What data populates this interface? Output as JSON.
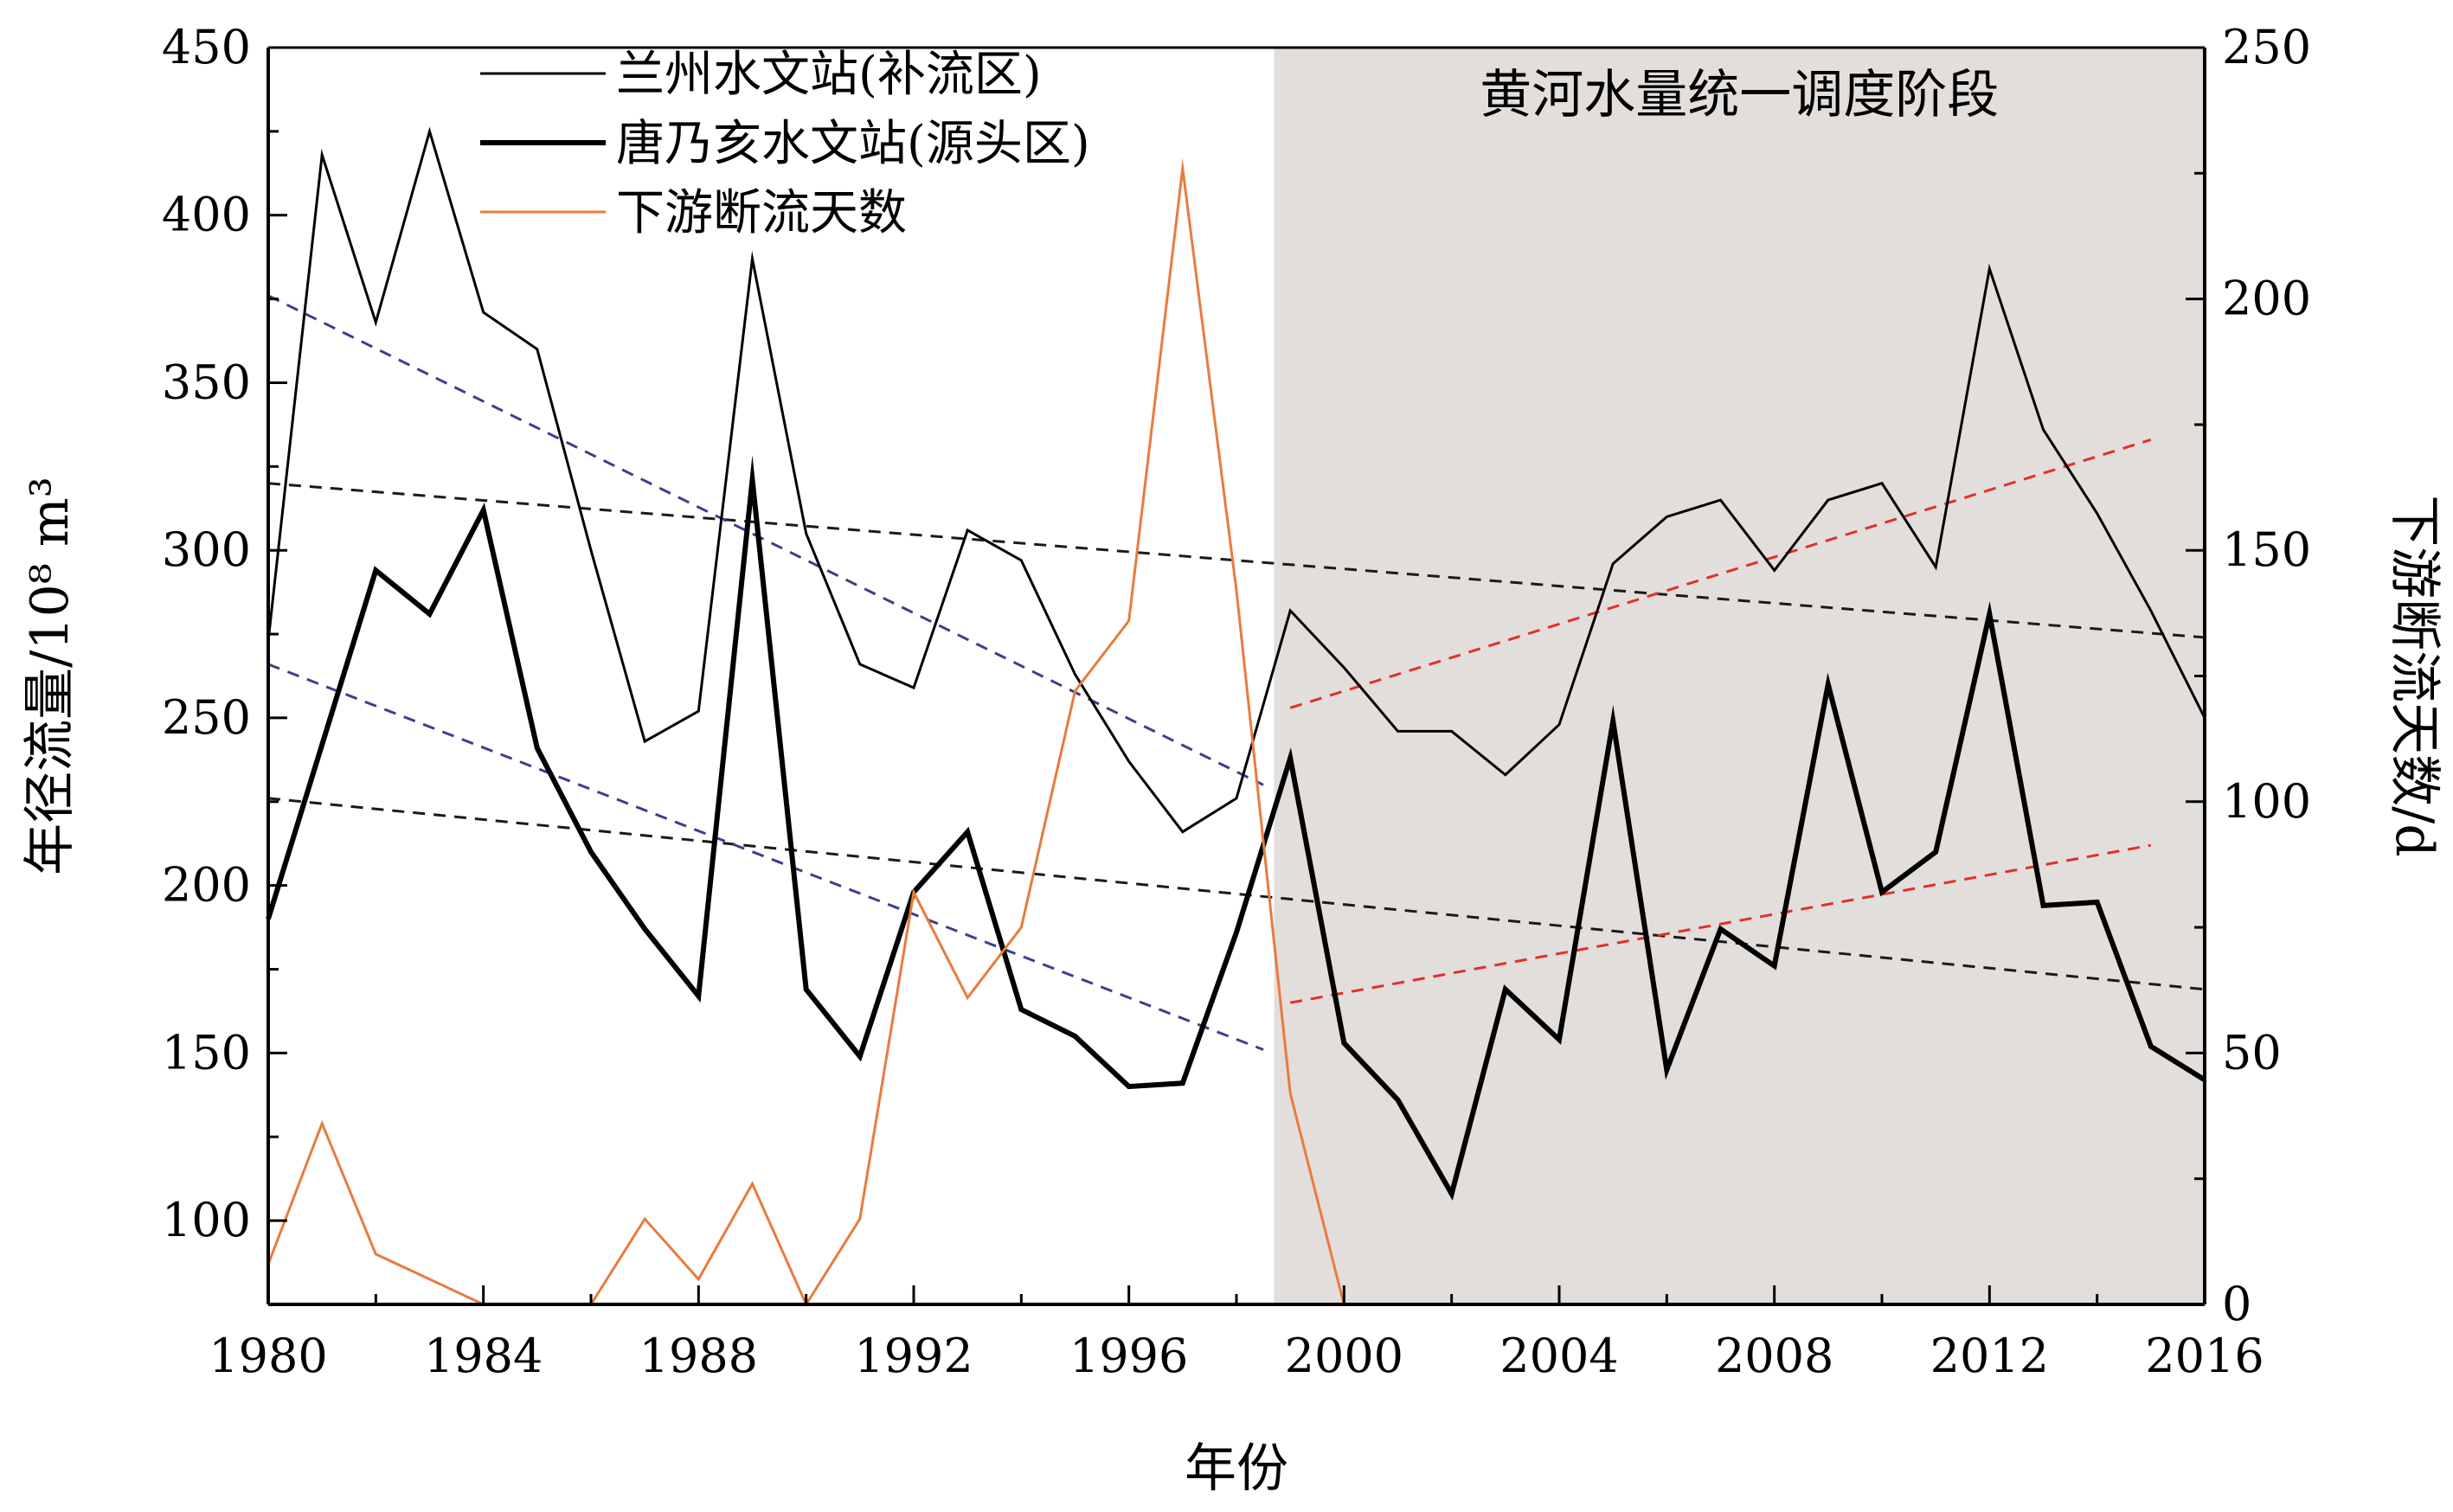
{
  "chart_data": {
    "type": "line",
    "x": [
      1980,
      1981,
      1982,
      1983,
      1984,
      1985,
      1986,
      1987,
      1988,
      1989,
      1990,
      1991,
      1992,
      1993,
      1994,
      1995,
      1996,
      1997,
      1998,
      1999,
      2000,
      2001,
      2002,
      2003,
      2004,
      2005,
      2006,
      2007,
      2008,
      2009,
      2010,
      2011,
      2012,
      2013,
      2014,
      2015,
      2016
    ],
    "xlabel": "年份",
    "ylabel_left": "年径流量/10⁸ m³",
    "ylabel_right": "下游断流天数/d",
    "xlim": [
      1980,
      2016
    ],
    "ylim_left": [
      75,
      450
    ],
    "ylim_right": [
      0,
      250
    ],
    "x_ticks": [
      1980,
      1984,
      1988,
      1992,
      1996,
      2000,
      2004,
      2008,
      2012,
      2016
    ],
    "y_ticks_left": [
      100,
      150,
      200,
      250,
      300,
      350,
      400,
      450
    ],
    "y_ticks_right": [
      0,
      50,
      100,
      150,
      200,
      250
    ],
    "shaded_region": {
      "x_from": 1998.7,
      "x_to": 2016,
      "label": "黄河水量统一调度阶段",
      "color": "#e2dedb"
    },
    "legend_position": "top-left",
    "series": [
      {
        "name": "兰州水文站(补流区)",
        "axis": "left",
        "color": "#000000",
        "style": "thin",
        "values": [
          273,
          418,
          368,
          425,
          371,
          360,
          300,
          243,
          252,
          387,
          305,
          266,
          259,
          306,
          297,
          263,
          237,
          216,
          226,
          282,
          265,
          246,
          246,
          233,
          248,
          296,
          310,
          315,
          294,
          315,
          320,
          295,
          384,
          336,
          311,
          282,
          250
        ]
      },
      {
        "name": "唐乃亥水文站(源头区)",
        "axis": "left",
        "color": "#000000",
        "style": "thick",
        "values": [
          190,
          242,
          294,
          281,
          312,
          241,
          210,
          187,
          167,
          321,
          169,
          149,
          198,
          216,
          163,
          155,
          140,
          141,
          186,
          238,
          153,
          136,
          108,
          169,
          154,
          249,
          145,
          187,
          176,
          260,
          198,
          210,
          281,
          194,
          195,
          152,
          142
        ]
      },
      {
        "name": "下游断流天数",
        "axis": "right",
        "color": "#e87b3d",
        "style": "thin",
        "values": [
          8,
          36,
          10,
          5,
          0,
          0,
          0,
          17,
          5,
          24,
          0,
          17,
          82,
          61,
          75,
          122,
          136,
          226,
          142,
          42,
          0,
          0,
          0,
          0,
          0,
          0,
          0,
          0,
          0,
          0,
          0,
          0,
          0,
          0,
          0,
          0,
          0
        ]
      }
    ],
    "trend_lines": [
      {
        "axis": "left",
        "color": "#1a1a1a",
        "x": [
          1980,
          2016
        ],
        "y": [
          320,
          274
        ]
      },
      {
        "axis": "left",
        "color": "#1a1a1a",
        "x": [
          1980,
          2016
        ],
        "y": [
          226,
          169
        ]
      },
      {
        "axis": "left",
        "color": "#3b3f8f",
        "x": [
          1980,
          1998.5
        ],
        "y": [
          376,
          230
        ]
      },
      {
        "axis": "left",
        "color": "#3b3f8f",
        "x": [
          1980,
          1998.5
        ],
        "y": [
          266,
          151
        ]
      },
      {
        "axis": "left",
        "color": "#e0302a",
        "x": [
          1999,
          2015
        ],
        "y": [
          253,
          333
        ]
      },
      {
        "axis": "left",
        "color": "#e0302a",
        "x": [
          1999,
          2015
        ],
        "y": [
          165,
          212
        ]
      }
    ]
  }
}
